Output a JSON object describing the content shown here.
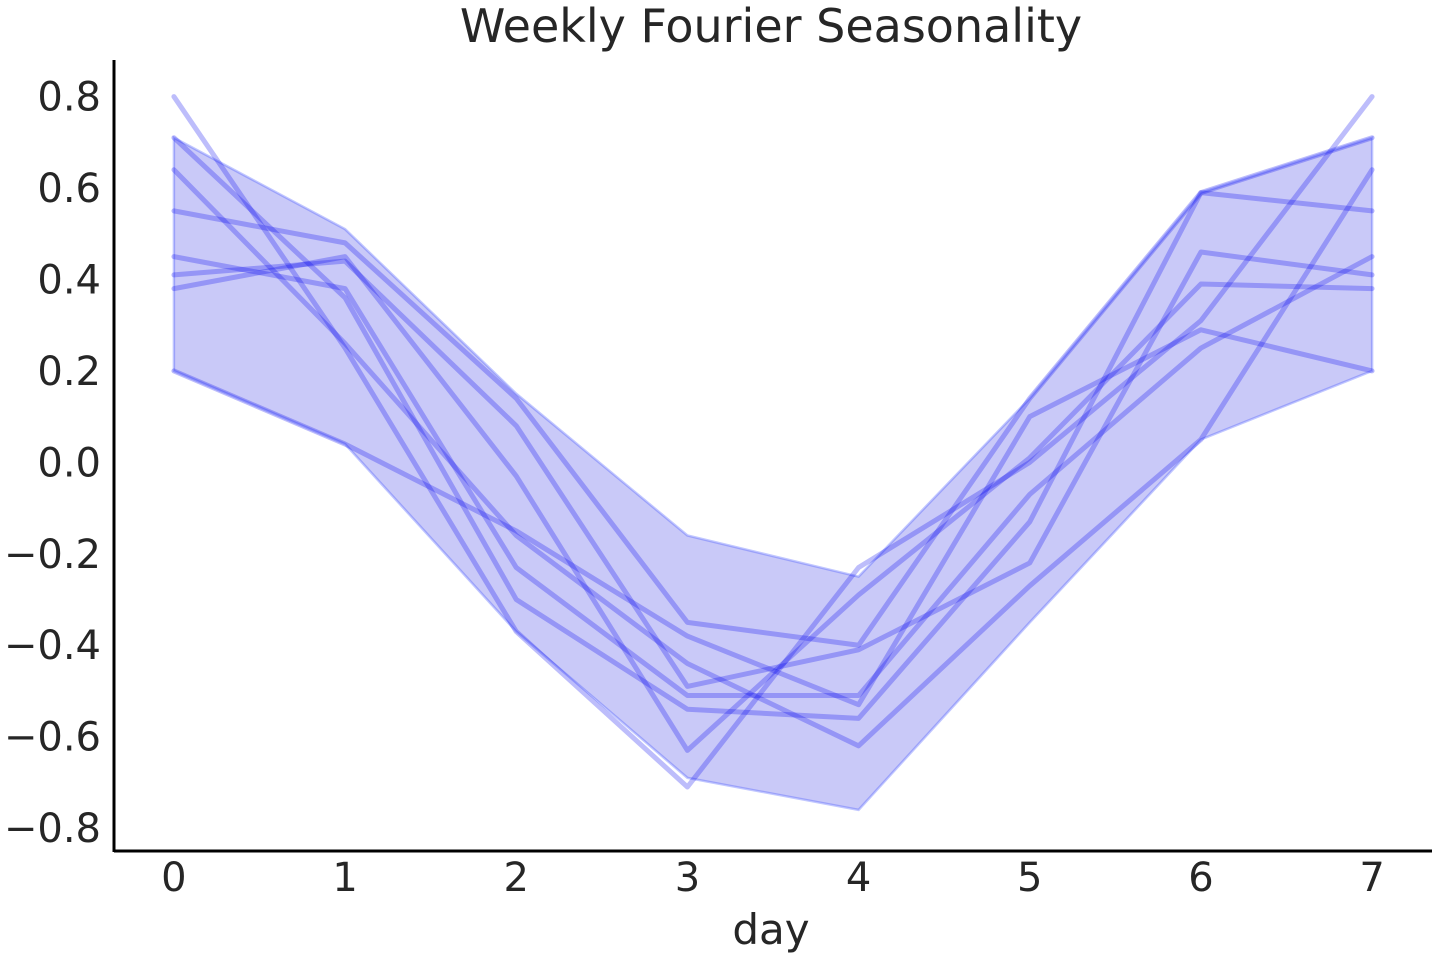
{
  "chart_data": {
    "type": "line",
    "title": "Weekly Fourier Seasonality",
    "xlabel": "day",
    "ylabel": "",
    "x": [
      0,
      1,
      2,
      3,
      4,
      5,
      6,
      7
    ],
    "xlim": [
      -0.35,
      7.35
    ],
    "ylim": [
      -0.85,
      0.88
    ],
    "xticks": [
      0,
      1,
      2,
      3,
      4,
      5,
      6,
      7
    ],
    "xtick_labels": [
      "0",
      "1",
      "2",
      "3",
      "4",
      "5",
      "6",
      "7"
    ],
    "yticks": [
      -0.8,
      -0.6,
      -0.4,
      -0.2,
      0.0,
      0.2,
      0.4,
      0.6,
      0.8
    ],
    "ytick_labels": [
      "−0.8",
      "−0.6",
      "−0.4",
      "−0.2",
      "0.0",
      "0.2",
      "0.4",
      "0.6",
      "0.8"
    ],
    "grid": false,
    "band": {
      "lower": [
        0.2,
        0.04,
        -0.37,
        -0.69,
        -0.76,
        -0.35,
        0.05,
        0.2
      ],
      "upper": [
        0.71,
        0.51,
        0.15,
        -0.16,
        -0.25,
        0.14,
        0.59,
        0.71
      ]
    },
    "series": [
      {
        "values": [
          0.8,
          0.25,
          -0.37,
          -0.71,
          -0.23,
          0.0,
          0.31,
          0.8
        ]
      },
      {
        "values": [
          0.71,
          0.36,
          -0.3,
          -0.54,
          -0.56,
          -0.13,
          0.59,
          0.71
        ]
      },
      {
        "values": [
          0.64,
          0.26,
          -0.16,
          -0.44,
          -0.62,
          -0.27,
          0.05,
          0.64
        ]
      },
      {
        "values": [
          0.55,
          0.48,
          0.14,
          -0.35,
          -0.4,
          0.14,
          0.59,
          0.55
        ]
      },
      {
        "values": [
          0.45,
          0.38,
          -0.23,
          -0.51,
          -0.51,
          -0.07,
          0.25,
          0.45
        ]
      },
      {
        "values": [
          0.41,
          0.44,
          0.08,
          -0.49,
          -0.41,
          -0.22,
          0.46,
          0.41
        ]
      },
      {
        "values": [
          0.38,
          0.45,
          -0.03,
          -0.63,
          -0.29,
          0.01,
          0.39,
          0.38
        ]
      },
      {
        "values": [
          0.2,
          0.04,
          -0.15,
          -0.38,
          -0.53,
          0.1,
          0.29,
          0.2
        ]
      }
    ],
    "colors": {
      "line": "#0000ee",
      "band_fill": "#0000dd",
      "band_edge": "#3344ff",
      "text": "#262626",
      "spine": "#000000"
    }
  }
}
